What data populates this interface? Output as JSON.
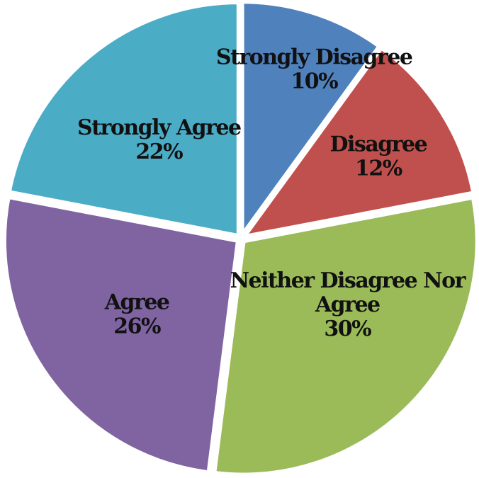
{
  "chart_data": {
    "type": "pie",
    "start_angle_deg": 0,
    "direction": "clockwise",
    "slices": [
      {
        "label": "Strongly Disagree",
        "label_lines": [
          "Strongly Disagree"
        ],
        "value": 10,
        "value_label": "10%",
        "color": "#4F81BD"
      },
      {
        "label": "Disagree",
        "label_lines": [
          "Disagree"
        ],
        "value": 12,
        "value_label": "12%",
        "color": "#C0504D"
      },
      {
        "label": "Neither Disagree Nor Agree",
        "label_lines": [
          "Neither Disagree Nor",
          "Agree"
        ],
        "value": 30,
        "value_label": "30%",
        "color": "#9BBB59"
      },
      {
        "label": "Agree",
        "label_lines": [
          "Agree"
        ],
        "value": 26,
        "value_label": "26%",
        "color": "#8064A2"
      },
      {
        "label": "Strongly Agree",
        "label_lines": [
          "Strongly Agree"
        ],
        "value": 22,
        "value_label": "22%",
        "color": "#4BACC6"
      }
    ]
  }
}
